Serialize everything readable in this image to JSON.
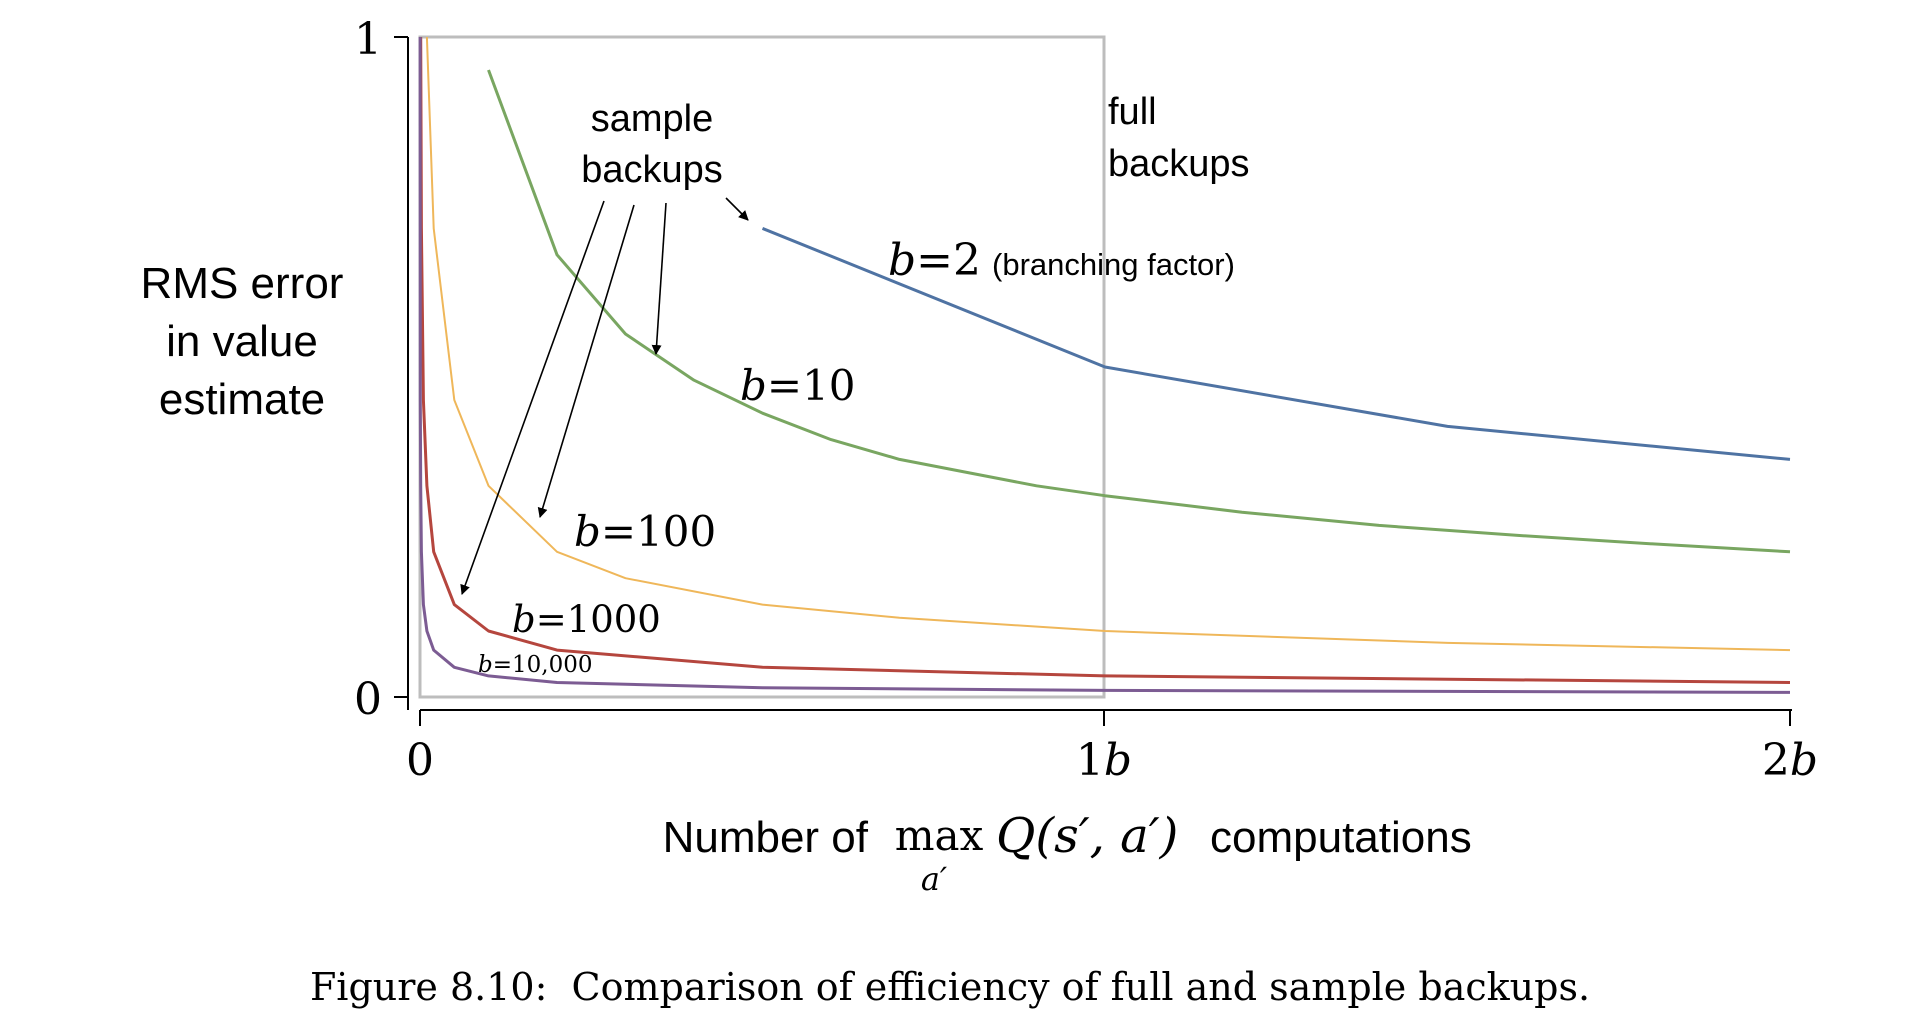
{
  "chart_data": {
    "type": "line",
    "ylabel_lines": [
      "RMS error",
      "in value",
      "estimate"
    ],
    "xlabel": {
      "prefix": "Number of",
      "op": "max",
      "sub": "a′",
      "expr": "Q(s′, a′)",
      "suffix": "computations"
    },
    "x_ticks": [
      {
        "value": 0,
        "label": "0"
      },
      {
        "value": 1,
        "label": "1",
        "suffix": "b"
      },
      {
        "value": 2,
        "label": "2",
        "suffix": "b"
      }
    ],
    "y_ticks": [
      {
        "value": 0,
        "label": "0"
      },
      {
        "value": 1,
        "label": "1"
      }
    ],
    "xlim": [
      0,
      2
    ],
    "ylim": [
      0,
      1
    ],
    "grid": false,
    "series": [
      {
        "name": "b=2",
        "color": "#4f73a3",
        "x": [
          0.5,
          1.0,
          1.5,
          2.0
        ],
        "y": [
          0.71,
          0.5,
          0.41,
          0.36
        ]
      },
      {
        "name": "b=10",
        "color": "#79a661",
        "x": [
          0.1,
          0.2,
          0.3,
          0.4,
          0.5,
          0.6,
          0.7,
          0.8,
          0.9,
          1.0,
          1.2,
          1.4,
          1.6,
          1.8,
          2.0
        ],
        "y": [
          0.95,
          0.67,
          0.55,
          0.48,
          0.43,
          0.39,
          0.36,
          0.34,
          0.32,
          0.305,
          0.28,
          0.26,
          0.245,
          0.232,
          0.22
        ]
      },
      {
        "name": "b=100",
        "color": "#efb75a",
        "x": [
          0.01,
          0.02,
          0.05,
          0.1,
          0.2,
          0.3,
          0.5,
          0.7,
          1.0,
          1.5,
          2.0
        ],
        "y": [
          1.0,
          0.71,
          0.45,
          0.32,
          0.22,
          0.18,
          0.14,
          0.12,
          0.1,
          0.082,
          0.071
        ]
      },
      {
        "name": "b=1000",
        "color": "#b5463e",
        "x": [
          0.001,
          0.002,
          0.005,
          0.01,
          0.02,
          0.05,
          0.1,
          0.2,
          0.5,
          1.0,
          2.0
        ],
        "y": [
          1.0,
          0.71,
          0.45,
          0.32,
          0.22,
          0.14,
          0.1,
          0.071,
          0.045,
          0.032,
          0.022
        ]
      },
      {
        "name": "b=10,000",
        "color": "#7c5c93",
        "x": [
          0.0001,
          0.0005,
          0.001,
          0.002,
          0.005,
          0.01,
          0.02,
          0.05,
          0.1,
          0.2,
          0.5,
          1.0,
          2.0
        ],
        "y": [
          1.0,
          0.45,
          0.32,
          0.22,
          0.14,
          0.1,
          0.071,
          0.045,
          0.032,
          0.022,
          0.014,
          0.01,
          0.007
        ]
      }
    ],
    "series_labels": [
      {
        "b": "b",
        "eq": "=2",
        "note": "(branching factor)"
      },
      {
        "b": "b",
        "eq": "=10"
      },
      {
        "b": "b",
        "eq": "=100"
      },
      {
        "b": "b",
        "eq": "=1000"
      },
      {
        "b": "b",
        "eq": "=10,000"
      }
    ],
    "annotations": {
      "sample_backups": [
        "sample",
        "backups"
      ],
      "full_backups": [
        "full",
        "backups"
      ]
    }
  },
  "caption": "Figure 8.10:  Comparison of efficiency of full and sample backups."
}
